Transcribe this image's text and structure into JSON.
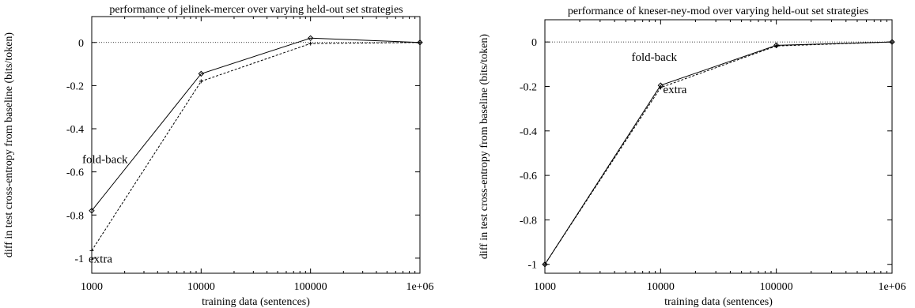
{
  "chart_data": [
    {
      "type": "line",
      "title": "performance of jelinek-mercer over varying held-out set strategies",
      "xlabel": "training data (sentences)",
      "ylabel": "diff in test cross-entropy from baseline (bits/token)",
      "x_scale": "log",
      "xlim": [
        1000,
        1000000
      ],
      "ylim": [
        -1.07,
        0.12
      ],
      "x_ticks": [
        1000,
        10000,
        100000,
        1000000
      ],
      "x_tick_labels": [
        "1000",
        "10000",
        "100000",
        "1e+06"
      ],
      "y_ticks": [
        0,
        -0.2,
        -0.4,
        -0.6,
        -0.8,
        -1
      ],
      "y_tick_labels": [
        "0",
        "-0.2",
        "-0.4",
        "-0.6",
        "-0.8",
        "-1"
      ],
      "zero_line": "dotted",
      "grid": false,
      "series": [
        {
          "name": "fold-back",
          "style": "solid",
          "marker": "diamond",
          "x": [
            1000,
            10000,
            100000,
            1000000
          ],
          "y": [
            -0.78,
            -0.145,
            0.02,
            0.0
          ]
        },
        {
          "name": "extra",
          "style": "dashed",
          "marker": "plus",
          "x": [
            1000,
            10000,
            100000,
            1000000
          ],
          "y": [
            -0.965,
            -0.18,
            -0.005,
            0.0
          ]
        }
      ]
    },
    {
      "type": "line",
      "title": "performance of kneser-ney-mod over varying held-out set strategies",
      "xlabel": "training data (sentences)",
      "ylabel": "diff in test cross-entropy from baseline (bits/token)",
      "x_scale": "log",
      "xlim": [
        1000,
        1000000
      ],
      "ylim": [
        -1.04,
        0.1
      ],
      "x_ticks": [
        1000,
        10000,
        100000,
        1000000
      ],
      "x_tick_labels": [
        "1000",
        "10000",
        "100000",
        "1e+06"
      ],
      "y_ticks": [
        0,
        -0.2,
        -0.4,
        -0.6,
        -0.8,
        -1
      ],
      "y_tick_labels": [
        "0",
        "-0.2",
        "-0.4",
        "-0.6",
        "-0.8",
        "-1"
      ],
      "zero_line": "dotted",
      "grid": false,
      "series": [
        {
          "name": "fold-back",
          "style": "solid",
          "marker": "diamond",
          "x": [
            1000,
            10000,
            100000,
            1000000
          ],
          "y": [
            -1.0,
            -0.195,
            -0.015,
            0.0
          ]
        },
        {
          "name": "extra",
          "style": "dashed",
          "marker": "plus",
          "x": [
            1000,
            10000,
            100000,
            1000000
          ],
          "y": [
            -1.0,
            -0.205,
            -0.018,
            0.0
          ]
        }
      ]
    }
  ]
}
